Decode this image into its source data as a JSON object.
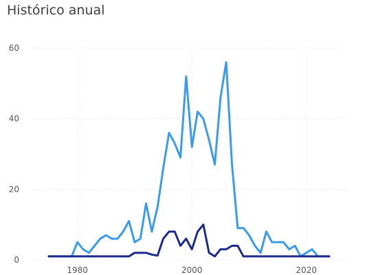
{
  "title": "Histórico anual",
  "chart_data": {
    "type": "line",
    "title": "Histórico anual",
    "xlabel": "",
    "ylabel": "",
    "xlim": [
      1972,
      2027
    ],
    "ylim": [
      0,
      60
    ],
    "x_ticks": [
      1980,
      2000,
      2020
    ],
    "y_ticks": [
      0,
      20,
      40,
      60
    ],
    "grid": true,
    "x": [
      1975,
      1976,
      1977,
      1978,
      1979,
      1980,
      1981,
      1982,
      1983,
      1984,
      1985,
      1986,
      1987,
      1988,
      1989,
      1990,
      1991,
      1992,
      1993,
      1994,
      1995,
      1996,
      1997,
      1998,
      1999,
      2000,
      2001,
      2002,
      2003,
      2004,
      2005,
      2006,
      2007,
      2008,
      2009,
      2010,
      2011,
      2012,
      2013,
      2014,
      2015,
      2016,
      2017,
      2018,
      2019,
      2020,
      2021,
      2022,
      2023,
      2024
    ],
    "series": [
      {
        "color": "#3a9bea",
        "values": [
          1,
          1,
          1,
          1,
          1,
          5,
          3,
          2,
          4,
          6,
          7,
          6,
          6,
          8,
          11,
          5,
          6,
          16,
          8,
          15,
          26,
          36,
          33,
          29,
          52,
          32,
          42,
          40,
          34,
          27,
          46,
          56,
          27,
          9,
          9,
          7,
          4,
          2,
          8,
          5,
          5,
          5,
          3,
          4,
          1,
          2,
          3,
          1,
          1,
          1
        ]
      },
      {
        "color": "#1c2a8c",
        "values": [
          1,
          1,
          1,
          1,
          1,
          1,
          1,
          1,
          1,
          1,
          1,
          1,
          1,
          1,
          1,
          2,
          2,
          2,
          1.5,
          1.2,
          6,
          8,
          8,
          4,
          6,
          3,
          8,
          10,
          2,
          1,
          3,
          3,
          4,
          4,
          1,
          1,
          1,
          1,
          1,
          1,
          1,
          1,
          1,
          1,
          1,
          1,
          1,
          1,
          1,
          1
        ]
      }
    ]
  }
}
